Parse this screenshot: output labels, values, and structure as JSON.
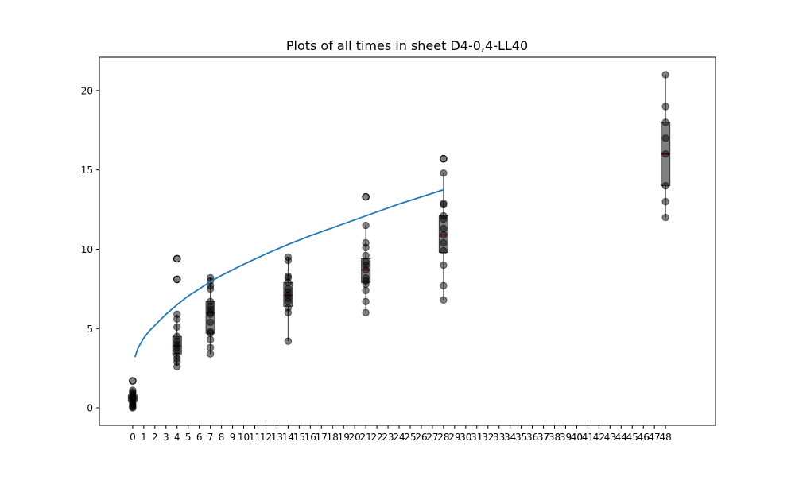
{
  "chart_data": {
    "type": "box",
    "title": "Plots of all times in sheet D4-0,4-LL40",
    "xlabel": "",
    "ylabel": "",
    "xlim": [
      -3,
      52.5
    ],
    "ylim": [
      -1.1,
      22.1
    ],
    "x_ticks": [
      0,
      1,
      2,
      3,
      4,
      5,
      6,
      7,
      8,
      9,
      10,
      11,
      12,
      13,
      14,
      15,
      16,
      17,
      18,
      19,
      20,
      21,
      22,
      23,
      24,
      25,
      26,
      27,
      28,
      29,
      30,
      31,
      32,
      33,
      34,
      35,
      36,
      37,
      38,
      39,
      40,
      41,
      42,
      43,
      44,
      45,
      46,
      47,
      48
    ],
    "y_ticks": [
      0,
      5,
      10,
      15,
      20
    ],
    "grid": false,
    "colors": {
      "box": "#808080",
      "median": "#8b0000",
      "points": "#000000",
      "fit_line": "#1f77b4"
    },
    "box_groups": [
      {
        "x": 0,
        "q1": 0.4,
        "median": 0.6,
        "q3": 0.8,
        "whisker_low": 0.0,
        "whisker_high": 1.1,
        "points": [
          0.0,
          0.05,
          0.1,
          0.2,
          0.3,
          0.4,
          0.5,
          0.6,
          0.7,
          0.8,
          0.9,
          1.0,
          1.1
        ],
        "outliers": [
          1.7
        ]
      },
      {
        "x": 4,
        "q1": 3.4,
        "median": 3.9,
        "q3": 4.5,
        "whisker_low": 2.6,
        "whisker_high": 5.9,
        "points": [
          2.6,
          2.9,
          3.1,
          3.3,
          3.6,
          3.8,
          4.0,
          4.2,
          4.5,
          5.1,
          5.6,
          5.9
        ],
        "outliers": [
          8.1,
          9.4
        ]
      },
      {
        "x": 7,
        "q1": 4.7,
        "median": 6.0,
        "q3": 6.7,
        "whisker_low": 3.4,
        "whisker_high": 8.2,
        "points": [
          3.4,
          3.8,
          4.3,
          4.7,
          4.8,
          5.4,
          5.9,
          6.0,
          6.2,
          6.4,
          6.7,
          7.5,
          7.7,
          8.0,
          8.2
        ],
        "outliers": []
      },
      {
        "x": 14,
        "q1": 6.4,
        "median": 7.1,
        "q3": 7.9,
        "whisker_low": 4.2,
        "whisker_high": 9.5,
        "points": [
          4.2,
          6.0,
          6.3,
          6.7,
          6.9,
          7.1,
          7.3,
          7.5,
          7.9,
          8.2,
          8.3,
          9.3,
          9.5
        ],
        "outliers": []
      },
      {
        "x": 21,
        "q1": 7.9,
        "median": 8.7,
        "q3": 9.4,
        "whisker_low": 6.0,
        "whisker_high": 11.5,
        "points": [
          6.0,
          6.7,
          7.4,
          7.8,
          8.0,
          8.2,
          8.7,
          9.0,
          9.2,
          9.6,
          10.1,
          10.4,
          11.5
        ],
        "outliers": [
          13.3
        ]
      },
      {
        "x": 28,
        "q1": 9.8,
        "median": 10.9,
        "q3": 12.1,
        "whisker_low": 6.8,
        "whisker_high": 14.8,
        "points": [
          6.8,
          7.7,
          9.0,
          9.9,
          10.4,
          10.9,
          11.3,
          11.9,
          12.1,
          12.8,
          12.9,
          14.8
        ],
        "outliers": [
          15.7
        ]
      },
      {
        "x": 48,
        "q1": 14.0,
        "median": 16.0,
        "q3": 18.0,
        "whisker_low": 12.0,
        "whisker_high": 21.0,
        "points": [
          12.0,
          13.0,
          14.0,
          16.0,
          17.0,
          18.0,
          19.0,
          21.0
        ],
        "outliers": []
      }
    ],
    "fit_line": {
      "x": [
        0.2,
        0.5,
        1,
        1.5,
        2,
        3,
        4,
        5,
        6,
        7,
        8,
        10,
        12,
        14,
        16,
        18,
        20,
        22,
        24,
        26,
        28
      ],
      "y": [
        3.2,
        3.8,
        4.4,
        4.85,
        5.2,
        5.9,
        6.5,
        7.05,
        7.5,
        7.95,
        8.35,
        9.05,
        9.7,
        10.3,
        10.85,
        11.35,
        11.85,
        12.35,
        12.85,
        13.3,
        13.75
      ]
    }
  }
}
